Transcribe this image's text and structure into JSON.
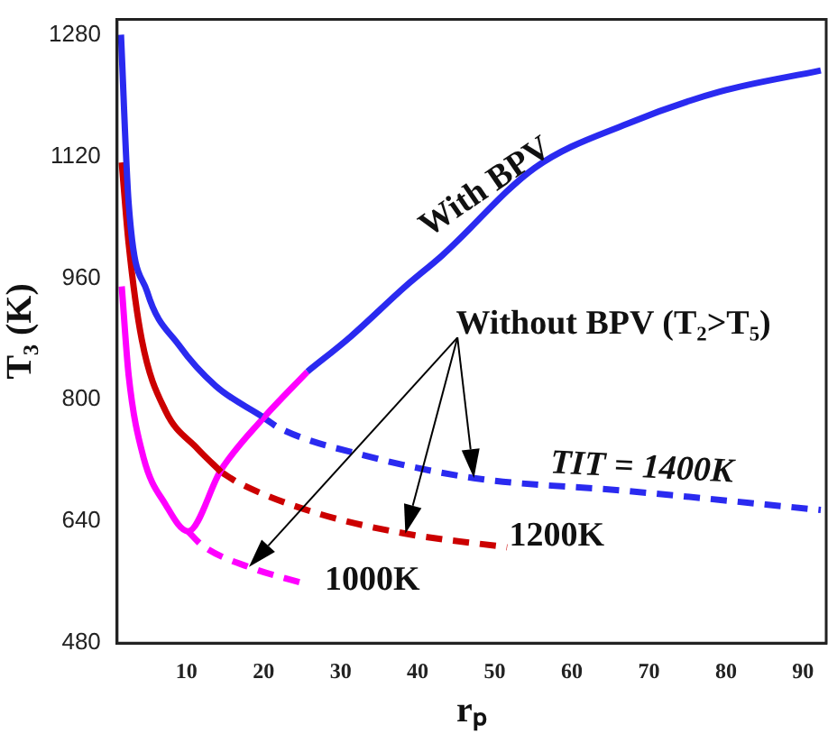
{
  "chart_data": {
    "type": "line",
    "xlabel": "rₚ",
    "ylabel": "T₃ (K)",
    "xlim": [
      1,
      93
    ],
    "xticks": [
      10,
      20,
      30,
      40,
      50,
      60,
      70,
      80,
      90
    ],
    "ylim": [
      480,
      1300
    ],
    "yticks": [
      480,
      640,
      800,
      960,
      1120,
      1280
    ],
    "grid": false,
    "legend": false,
    "marker": "none",
    "series": [
      {
        "color": "#2a2af0",
        "line_style": "solid",
        "x": [
          1.5,
          2.5,
          4.9,
          9,
          13.8,
          19.8,
          null,
          25.7,
          31.3,
          38.4,
          43.2,
          55.2,
          67.2,
          79.2,
          92.3
        ],
        "values": [
          1280,
          1058,
          942,
          872,
          818,
          778,
          null,
          837,
          883,
          949,
          990,
          1105,
          1163,
          1205,
          1233
        ]
      },
      {
        "color": "#cc0000",
        "line_style": "solid",
        "x": [
          1.6,
          2.5,
          4.2,
          7.3,
          11.4,
          14.5
        ],
        "values": [
          1112,
          1005,
          879,
          785,
          736,
          705
        ]
      },
      {
        "color": "#ff00ff",
        "line_style": "solid",
        "x": [
          1.6,
          2.5,
          4.4,
          7.3,
          10.2,
          14.5,
          19.8,
          25.7
        ],
        "values": [
          949,
          832,
          725,
          662,
          627,
          708,
          774,
          837
        ]
      },
      {
        "color": "#2a2af0",
        "line_style": "dashed",
        "x": [
          19.8,
          22.2,
          33,
          47.3,
          67.2,
          92.3
        ],
        "values": [
          778,
          762,
          727,
          697,
          680,
          655
        ]
      },
      {
        "color": "#cc0000",
        "line_style": "dashed",
        "x": [
          14.5,
          16.9,
          27.2,
          38.4,
          51.6
        ],
        "values": [
          705,
          690,
          650,
          624,
          606
        ]
      },
      {
        "color": "#ff00ff",
        "line_style": "dashed",
        "x": [
          10.2,
          12.1,
          18.1,
          25.7
        ],
        "values": [
          627,
          608,
          580,
          557
        ]
      }
    ],
    "annotations": [
      "With BPV",
      "Without BPV (T₂>T₅)",
      "TIT = 1400K",
      "1200K",
      "1000K"
    ]
  }
}
